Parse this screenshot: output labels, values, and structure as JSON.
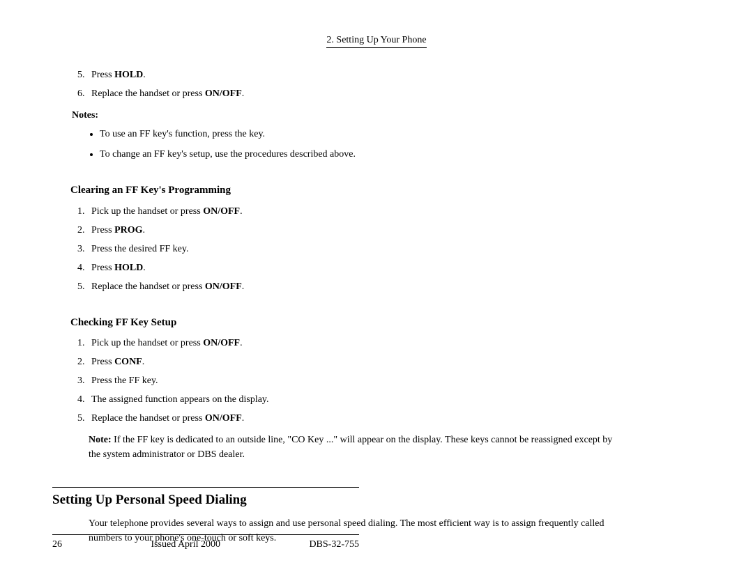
{
  "header": {
    "chapter": "2. Setting Up Your Phone"
  },
  "steps_top": {
    "start": 5,
    "items": [
      {
        "pre": "Press ",
        "bold": "HOLD",
        "post": "."
      },
      {
        "pre": "Replace the handset or press ",
        "bold": "ON/OFF",
        "post": "."
      }
    ]
  },
  "notes_label": "Notes:",
  "notes_bullets": [
    "To use an FF key's function, press the key.",
    "To change an FF key's setup, use the procedures described above."
  ],
  "clearing": {
    "title": "Clearing an FF Key's Programming",
    "items": [
      {
        "pre": "Pick up the handset or press ",
        "bold": "ON/OFF",
        "post": "."
      },
      {
        "pre": "Press ",
        "bold": "PROG",
        "post": "."
      },
      {
        "pre": "Press the desired FF key.",
        "bold": "",
        "post": ""
      },
      {
        "pre": "Press ",
        "bold": "HOLD",
        "post": "."
      },
      {
        "pre": "Replace the handset or press ",
        "bold": "ON/OFF",
        "post": "."
      }
    ]
  },
  "checking": {
    "title": "Checking FF Key Setup",
    "items": [
      {
        "pre": "Pick up the handset or press ",
        "bold": "ON/OFF",
        "post": "."
      },
      {
        "pre": "Press ",
        "bold": "CONF",
        "post": "."
      },
      {
        "pre": "Press the FF key.",
        "bold": "",
        "post": ""
      },
      {
        "pre": "The assigned function appears on the display.",
        "bold": "",
        "post": ""
      },
      {
        "pre": "Replace the handset or press ",
        "bold": "ON/OFF",
        "post": "."
      }
    ],
    "note_bold": "Note:",
    "note_text": "  If the FF key is dedicated to an outside line, \"CO Key ...\" will appear on the display. These keys cannot be reassigned except by the system administrator or DBS dealer."
  },
  "section": {
    "title": "Setting Up Personal Speed Dialing",
    "body": "Your telephone provides several ways to assign and use personal speed dialing. The most efficient way is to assign frequently called numbers to your phone's one-touch or soft keys."
  },
  "footer": {
    "page": "26",
    "issued": "Issued April 2000",
    "doc": "DBS-32-755"
  }
}
